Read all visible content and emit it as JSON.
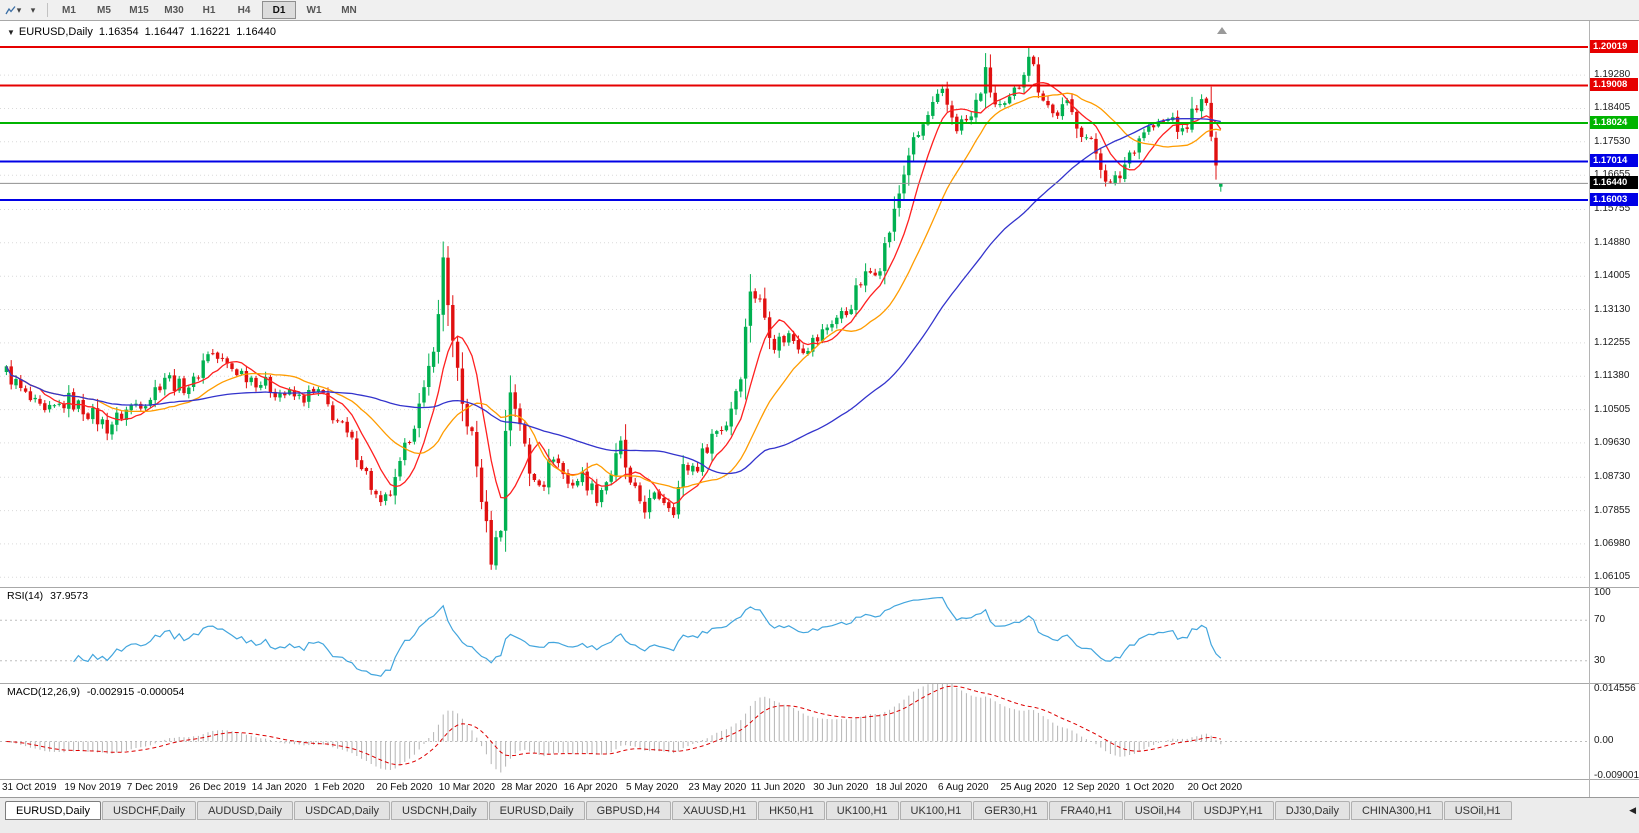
{
  "toolbar": {
    "timeframes": [
      "M1",
      "M5",
      "M15",
      "M30",
      "H1",
      "H4",
      "D1",
      "W1",
      "MN"
    ],
    "active_timeframe": "D1"
  },
  "quote": {
    "collapse_icon": "▼",
    "symbol": "EURUSD,Daily",
    "open": "1.16354",
    "high": "1.16447",
    "low": "1.16221",
    "close": "1.16440"
  },
  "indicators": {
    "rsi": {
      "label": "RSI(14)",
      "value": "37.9573",
      "axis_labels": [
        {
          "text": "100",
          "value": 100
        },
        {
          "text": "70",
          "value": 70
        },
        {
          "text": "30",
          "value": 30
        }
      ]
    },
    "macd": {
      "label": "MACD(12,26,9)",
      "values": "-0.002915 -0.000054",
      "axis_labels": [
        {
          "text": "0.014556",
          "value": 0.014556
        },
        {
          "text": "0.00",
          "value": 0
        },
        {
          "text": "-0.009001",
          "value": -0.009001
        }
      ]
    }
  },
  "chart_data": {
    "type": "candlestick",
    "symbol": "EURUSD",
    "timeframe": "Daily",
    "candle_count": 254,
    "last_candle": {
      "o": 1.16354,
      "h": 1.16447,
      "l": 1.16221,
      "c": 1.1644
    },
    "close_keyframes": [
      [
        0,
        1.115
      ],
      [
        4,
        1.1085
      ],
      [
        8,
        1.1035
      ],
      [
        13,
        1.1075
      ],
      [
        17,
        1.1045
      ],
      [
        21,
        1.1005
      ],
      [
        26,
        1.106
      ],
      [
        30,
        1.1085
      ],
      [
        33,
        1.114
      ],
      [
        36,
        1.111
      ],
      [
        39,
        1.112
      ],
      [
        42,
        1.1205
      ],
      [
        46,
        1.1165
      ],
      [
        52,
        1.113
      ],
      [
        57,
        1.1095
      ],
      [
        61,
        1.108
      ],
      [
        65,
        1.1095
      ],
      [
        69,
        1.102
      ],
      [
        73,
        1.094
      ],
      [
        78,
        1.079
      ],
      [
        81,
        1.0855
      ],
      [
        84,
        1.0985
      ],
      [
        87,
        1.109
      ],
      [
        90,
        1.129
      ],
      [
        91,
        1.145
      ],
      [
        93,
        1.122
      ],
      [
        95,
        1.106
      ],
      [
        97,
        1.098
      ],
      [
        99,
        1.082
      ],
      [
        101,
        1.066
      ],
      [
        103,
        1.075
      ],
      [
        104,
        1.099
      ],
      [
        105,
        1.11
      ],
      [
        107,
        1.102
      ],
      [
        109,
        1.088
      ],
      [
        112,
        1.0865
      ],
      [
        114,
        1.0935
      ],
      [
        117,
        1.0855
      ],
      [
        120,
        1.0875
      ],
      [
        123,
        1.0825
      ],
      [
        126,
        1.0885
      ],
      [
        128,
        1.0955
      ],
      [
        130,
        1.0845
      ],
      [
        133,
        1.0795
      ],
      [
        136,
        1.0825
      ],
      [
        139,
        1.0795
      ],
      [
        141,
        1.0895
      ],
      [
        144,
        1.0905
      ],
      [
        147,
        1.0985
      ],
      [
        150,
        1.1015
      ],
      [
        153,
        1.115
      ],
      [
        155,
        1.137
      ],
      [
        157,
        1.133
      ],
      [
        160,
        1.1225
      ],
      [
        163,
        1.1245
      ],
      [
        166,
        1.1215
      ],
      [
        169,
        1.1235
      ],
      [
        172,
        1.1285
      ],
      [
        175,
        1.1305
      ],
      [
        178,
        1.1385
      ],
      [
        182,
        1.1435
      ],
      [
        185,
        1.1565
      ],
      [
        188,
        1.1725
      ],
      [
        190,
        1.177
      ],
      [
        193,
        1.1845
      ],
      [
        195,
        1.1875
      ],
      [
        198,
        1.1795
      ],
      [
        201,
        1.1815
      ],
      [
        204,
        1.193
      ],
      [
        206,
        1.185
      ],
      [
        208,
        1.1835
      ],
      [
        211,
        1.1905
      ],
      [
        213,
        1.199
      ],
      [
        215,
        1.19
      ],
      [
        218,
        1.1825
      ],
      [
        221,
        1.1845
      ],
      [
        224,
        1.1785
      ],
      [
        227,
        1.1725
      ],
      [
        230,
        1.1635
      ],
      [
        232,
        1.1665
      ],
      [
        234,
        1.1725
      ],
      [
        237,
        1.1785
      ],
      [
        240,
        1.1795
      ],
      [
        243,
        1.1815
      ],
      [
        245,
        1.177
      ],
      [
        248,
        1.1855
      ],
      [
        250,
        1.1845
      ],
      [
        251,
        1.177
      ],
      [
        252,
        1.167
      ],
      [
        253,
        1.1644
      ]
    ],
    "price_scale": {
      "min": 1.0585,
      "max": 1.207
    },
    "y_ticks": [
      1.1928,
      1.18405,
      1.1753,
      1.16655,
      1.15755,
      1.1488,
      1.14005,
      1.1313,
      1.12255,
      1.1138,
      1.10505,
      1.0963,
      1.0873,
      1.07855,
      1.0698,
      1.06105
    ],
    "sr_lines": [
      {
        "value": 1.20019,
        "color": "#e60000"
      },
      {
        "value": 1.19008,
        "color": "#e60000"
      },
      {
        "value": 1.18024,
        "color": "#00b400"
      },
      {
        "value": 1.17014,
        "color": "#0000e6"
      },
      {
        "value": 1.16003,
        "color": "#0000e6"
      }
    ],
    "current_price": {
      "value": 1.1644,
      "line_color": "#909090",
      "badge_color": "#000000"
    },
    "moving_averages": [
      {
        "period": 8,
        "color": "#ff2020"
      },
      {
        "period": 20,
        "color": "#ff9c00"
      },
      {
        "period": 55,
        "color": "#3333cc"
      }
    ],
    "rsi": {
      "period": 14,
      "levels": [
        70,
        30
      ],
      "scale": {
        "min": 8,
        "max": 102
      }
    },
    "macd": {
      "fast": 12,
      "slow": 26,
      "signal": 9,
      "scale": {
        "min": -0.0098,
        "max": 0.015
      }
    },
    "colors": {
      "up": "#00b050",
      "down": "#e01010",
      "grid": "#dadada",
      "rsi_line": "#42a5dd",
      "macd_hist": "#b4b4b4",
      "macd_signal": "#dd0000"
    },
    "x_labels": [
      "31 Oct 2019",
      "19 Nov 2019",
      "7 Dec 2019",
      "26 Dec 2019",
      "14 Jan 2020",
      "1 Feb 2020",
      "20 Feb 2020",
      "10 Mar 2020",
      "28 Mar 2020",
      "16 Apr 2020",
      "5 May 2020",
      "23 May 2020",
      "11 Jun 2020",
      "30 Jun 2020",
      "18 Jul 2020",
      "6 Aug 2020",
      "25 Aug 2020",
      "12 Sep 2020",
      "1 Oct 2020",
      "20 Oct 2020"
    ]
  },
  "tabs": {
    "items": [
      "EURUSD,Daily",
      "USDCHF,Daily",
      "AUDUSD,Daily",
      "USDCAD,Daily",
      "USDCNH,Daily",
      "EURUSD,Daily",
      "GBPUSD,H4",
      "XAUUSD,H1",
      "HK50,H1",
      "UK100,H1",
      "UK100,H1",
      "GER30,H1",
      "FRA40,H1",
      "USOil,H4",
      "USDJPY,H1",
      "DJ30,Daily",
      "CHINA300,H1",
      "USOil,H1"
    ],
    "active_index": 0,
    "nav_left_icon": "◀"
  }
}
